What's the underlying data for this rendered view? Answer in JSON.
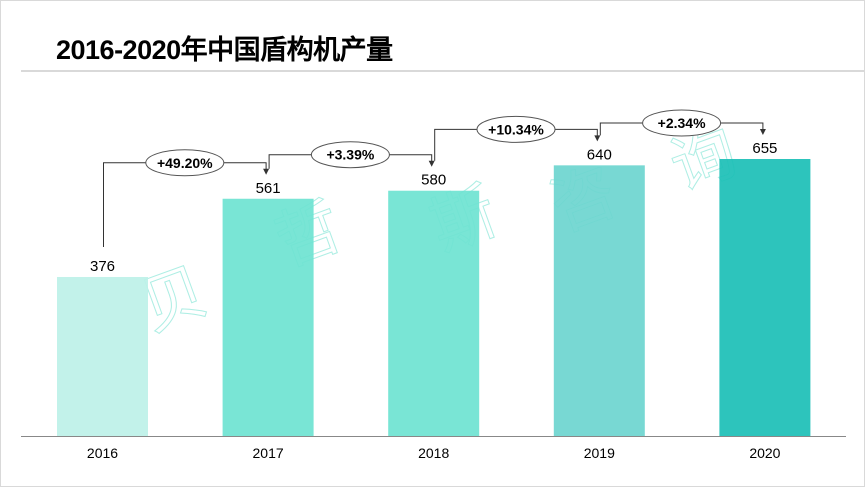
{
  "title": "2016-2020年中国盾构机产量",
  "watermark": "贝哲斯咨询",
  "chart_data": {
    "type": "bar",
    "title": "2016-2020年中国盾构机产量",
    "categories": [
      "2016",
      "2017",
      "2018",
      "2019",
      "2020"
    ],
    "values": [
      376,
      561,
      580,
      640,
      655
    ],
    "data_labels": [
      "376",
      "561",
      "580",
      "640",
      "655"
    ],
    "growth_labels": [
      "+49.20%",
      "+3.39%",
      "+10.34%",
      "+2.34%"
    ],
    "colors": [
      "#bdf1e8",
      "#6ee3d1",
      "#6ee3d1",
      "#6dd5cf",
      "#1bbfb6"
    ],
    "ylim": [
      0,
      650
    ],
    "xlabel": "",
    "ylabel": "",
    "grid": false,
    "legend": "none"
  }
}
